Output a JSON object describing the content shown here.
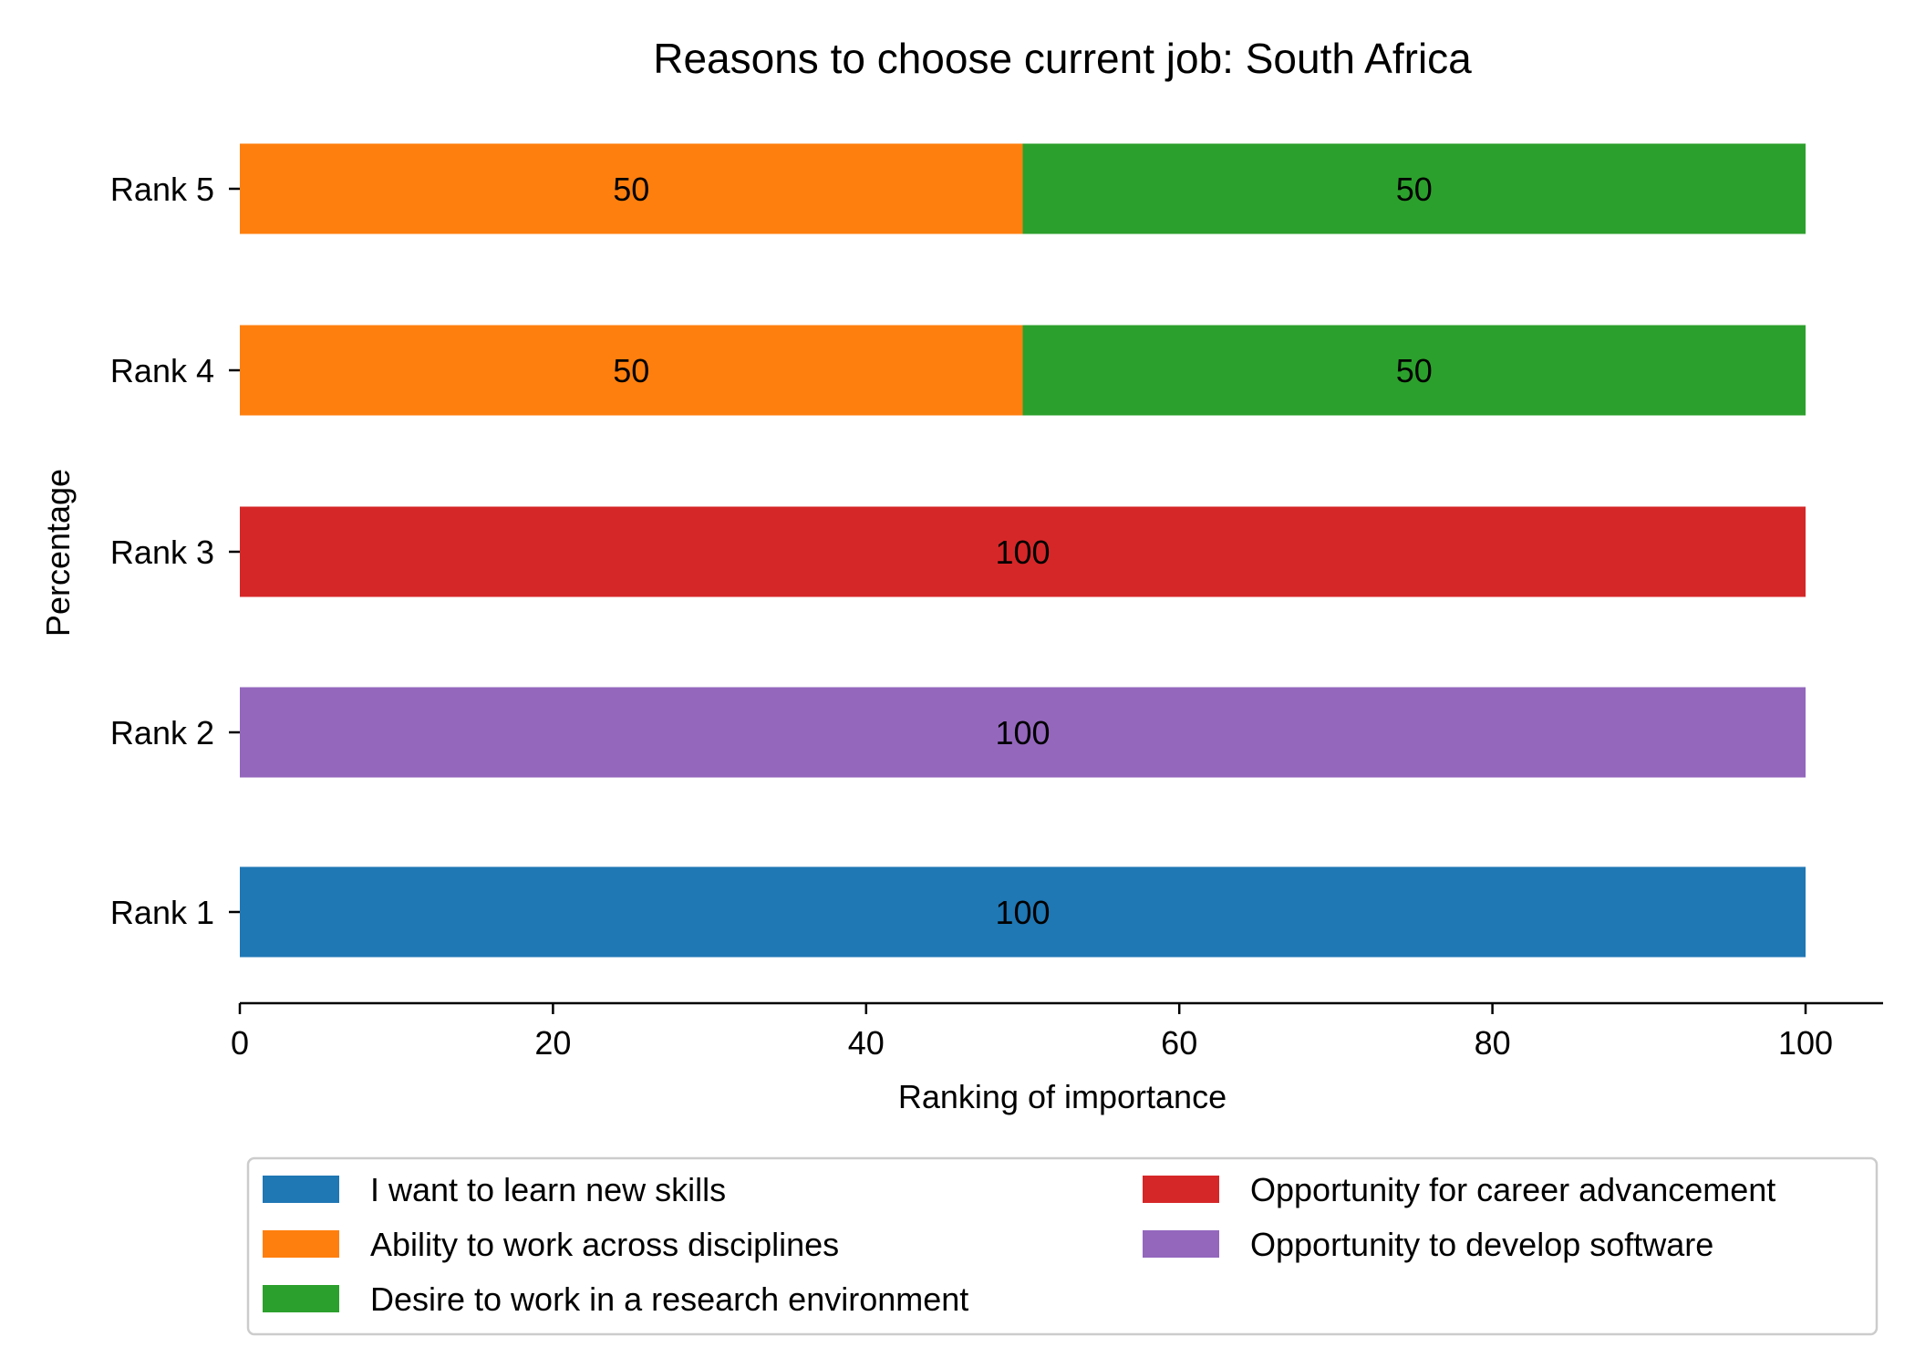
{
  "chart_data": {
    "type": "bar",
    "orientation": "horizontal",
    "stacked": true,
    "title": "Reasons to choose current job: South Africa",
    "xlabel": "Ranking of importance",
    "ylabel": "Percentage",
    "xlim": [
      0,
      105
    ],
    "xticks": [
      0,
      20,
      40,
      60,
      80,
      100
    ],
    "categories": [
      "Rank 1",
      "Rank 2",
      "Rank 3",
      "Rank 4",
      "Rank 5"
    ],
    "series": [
      {
        "name": "I want to learn new skills",
        "color": "#1f77b4",
        "values": [
          100,
          0,
          0,
          0,
          0
        ]
      },
      {
        "name": "Ability to work across disciplines",
        "color": "#ff7f0e",
        "values": [
          0,
          0,
          0,
          50,
          50
        ]
      },
      {
        "name": "Desire to work in a research environment",
        "color": "#2ca02c",
        "values": [
          0,
          0,
          0,
          50,
          50
        ]
      },
      {
        "name": "Opportunity for career advancement",
        "color": "#d62728",
        "values": [
          0,
          0,
          100,
          0,
          0
        ]
      },
      {
        "name": "Opportunity to develop software",
        "color": "#9467bd",
        "values": [
          0,
          100,
          0,
          0,
          0
        ]
      }
    ],
    "legend_position": "bottom",
    "legend_columns": 2,
    "grid": false
  }
}
